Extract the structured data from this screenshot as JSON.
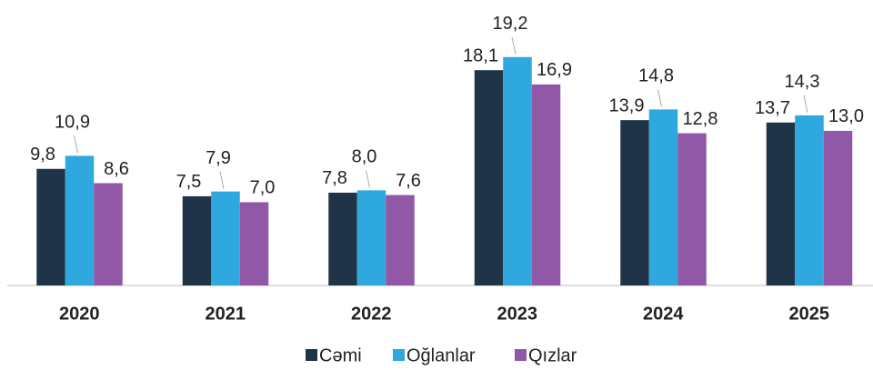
{
  "chart_data": {
    "type": "bar",
    "categories": [
      "2020",
      "2021",
      "2022",
      "2023",
      "2024",
      "2025"
    ],
    "series": [
      {
        "name": "Cəmi",
        "color": "#203448",
        "values": [
          9.8,
          7.5,
          7.8,
          18.1,
          13.9,
          13.7
        ],
        "value_labels": [
          "9,8",
          "7,5",
          "7,8",
          "18,1",
          "13,9",
          "13,7"
        ]
      },
      {
        "name": "Oğlanlar",
        "color": "#2fa8df",
        "values": [
          10.9,
          7.9,
          8.0,
          19.2,
          14.8,
          14.3
        ],
        "value_labels": [
          "10,9",
          "7,9",
          "8,0",
          "19,2",
          "14,8",
          "14,3"
        ]
      },
      {
        "name": "Qızlar",
        "color": "#9058a6",
        "values": [
          8.6,
          7.0,
          7.6,
          16.9,
          12.8,
          13.0
        ],
        "value_labels": [
          "8,6",
          "7,0",
          "7,6",
          "16,9",
          "12,8",
          "13,0"
        ]
      }
    ],
    "ylim": [
      0,
      24
    ],
    "legend": "bottom"
  }
}
